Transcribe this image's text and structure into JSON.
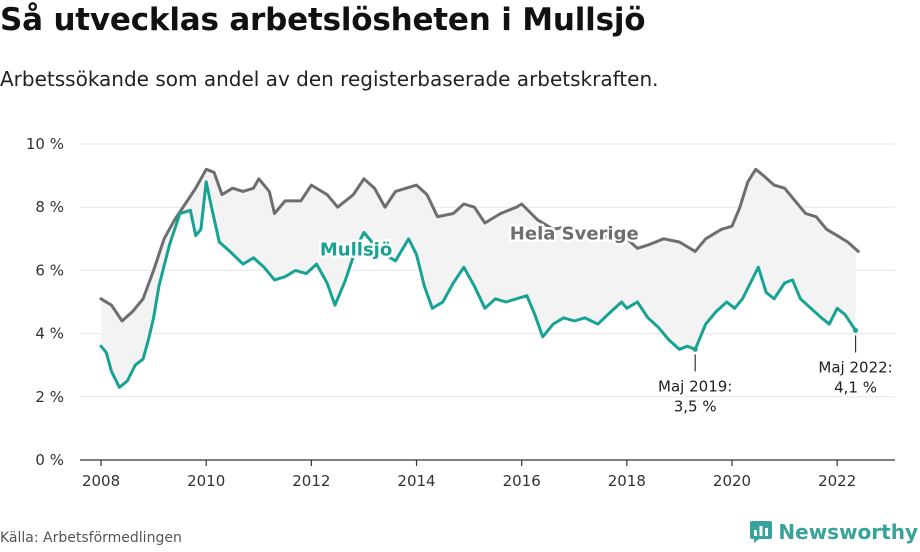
{
  "title": "Så utvecklas arbetslösheten i Mullsjö",
  "subtitle": "Arbetssökande som andel av den registerbaserade arbetskraften.",
  "source": "Källa: Arbetsförmedlingen",
  "brand": {
    "name": "Newsworthy",
    "icon": "newsworthy-logo-icon",
    "color": "#38a39a"
  },
  "chart_data": {
    "type": "line",
    "xlim": [
      2007.6,
      2023.1
    ],
    "ylim": [
      0,
      10
    ],
    "x_ticks": [
      2008,
      2010,
      2012,
      2014,
      2016,
      2018,
      2020,
      2022
    ],
    "y_ticks": [
      {
        "value": 0,
        "label": "0 %"
      },
      {
        "value": 2,
        "label": "2 %"
      },
      {
        "value": 4,
        "label": "4 %"
      },
      {
        "value": 6,
        "label": "6 %"
      },
      {
        "value": 8,
        "label": "8 %"
      },
      {
        "value": 10,
        "label": "10 %"
      }
    ],
    "grid": true,
    "series": [
      {
        "name": "Hela Sverige",
        "color": "#6e6e72",
        "points": [
          [
            2008.0,
            5.1
          ],
          [
            2008.2,
            4.9
          ],
          [
            2008.4,
            4.4
          ],
          [
            2008.6,
            4.7
          ],
          [
            2008.8,
            5.1
          ],
          [
            2009.0,
            6.0
          ],
          [
            2009.2,
            7.0
          ],
          [
            2009.4,
            7.6
          ],
          [
            2009.6,
            8.1
          ],
          [
            2009.8,
            8.6
          ],
          [
            2010.0,
            9.2
          ],
          [
            2010.15,
            9.1
          ],
          [
            2010.3,
            8.4
          ],
          [
            2010.5,
            8.6
          ],
          [
            2010.7,
            8.5
          ],
          [
            2010.9,
            8.6
          ],
          [
            2011.0,
            8.9
          ],
          [
            2011.2,
            8.5
          ],
          [
            2011.3,
            7.8
          ],
          [
            2011.5,
            8.2
          ],
          [
            2011.8,
            8.2
          ],
          [
            2012.0,
            8.7
          ],
          [
            2012.3,
            8.4
          ],
          [
            2012.5,
            8.0
          ],
          [
            2012.8,
            8.4
          ],
          [
            2013.0,
            8.9
          ],
          [
            2013.2,
            8.6
          ],
          [
            2013.4,
            8.0
          ],
          [
            2013.6,
            8.5
          ],
          [
            2014.0,
            8.7
          ],
          [
            2014.2,
            8.4
          ],
          [
            2014.4,
            7.7
          ],
          [
            2014.7,
            7.8
          ],
          [
            2014.9,
            8.1
          ],
          [
            2015.1,
            8.0
          ],
          [
            2015.3,
            7.5
          ],
          [
            2015.6,
            7.8
          ],
          [
            2015.9,
            8.0
          ],
          [
            2016.0,
            8.1
          ],
          [
            2016.3,
            7.6
          ],
          [
            2016.6,
            7.3
          ],
          [
            2016.9,
            7.4
          ],
          [
            2017.2,
            7.2
          ],
          [
            2017.5,
            7.0
          ],
          [
            2017.8,
            7.2
          ],
          [
            2018.0,
            7.0
          ],
          [
            2018.2,
            6.7
          ],
          [
            2018.4,
            6.8
          ],
          [
            2018.7,
            7.0
          ],
          [
            2019.0,
            6.9
          ],
          [
            2019.3,
            6.6
          ],
          [
            2019.5,
            7.0
          ],
          [
            2019.8,
            7.3
          ],
          [
            2020.0,
            7.4
          ],
          [
            2020.15,
            8.0
          ],
          [
            2020.3,
            8.8
          ],
          [
            2020.45,
            9.2
          ],
          [
            2020.6,
            9.0
          ],
          [
            2020.8,
            8.7
          ],
          [
            2021.0,
            8.6
          ],
          [
            2021.2,
            8.2
          ],
          [
            2021.4,
            7.8
          ],
          [
            2021.6,
            7.7
          ],
          [
            2021.8,
            7.3
          ],
          [
            2022.0,
            7.1
          ],
          [
            2022.2,
            6.9
          ],
          [
            2022.4,
            6.6
          ]
        ]
      },
      {
        "name": "Mullsjö",
        "color": "#17a394",
        "points": [
          [
            2008.0,
            3.6
          ],
          [
            2008.1,
            3.4
          ],
          [
            2008.2,
            2.8
          ],
          [
            2008.35,
            2.3
          ],
          [
            2008.5,
            2.5
          ],
          [
            2008.65,
            3.0
          ],
          [
            2008.8,
            3.2
          ],
          [
            2008.9,
            3.8
          ],
          [
            2009.0,
            4.5
          ],
          [
            2009.1,
            5.5
          ],
          [
            2009.3,
            6.8
          ],
          [
            2009.5,
            7.8
          ],
          [
            2009.7,
            7.9
          ],
          [
            2009.8,
            7.1
          ],
          [
            2009.9,
            7.3
          ],
          [
            2010.0,
            8.8
          ],
          [
            2010.1,
            8.0
          ],
          [
            2010.25,
            6.9
          ],
          [
            2010.45,
            6.6
          ],
          [
            2010.7,
            6.2
          ],
          [
            2010.9,
            6.4
          ],
          [
            2011.1,
            6.1
          ],
          [
            2011.3,
            5.7
          ],
          [
            2011.5,
            5.8
          ],
          [
            2011.7,
            6.0
          ],
          [
            2011.9,
            5.9
          ],
          [
            2012.1,
            6.2
          ],
          [
            2012.3,
            5.6
          ],
          [
            2012.45,
            4.9
          ],
          [
            2012.65,
            5.7
          ],
          [
            2012.85,
            6.7
          ],
          [
            2013.0,
            7.2
          ],
          [
            2013.2,
            6.8
          ],
          [
            2013.4,
            6.5
          ],
          [
            2013.6,
            6.3
          ],
          [
            2013.85,
            7.0
          ],
          [
            2014.0,
            6.5
          ],
          [
            2014.15,
            5.5
          ],
          [
            2014.3,
            4.8
          ],
          [
            2014.5,
            5.0
          ],
          [
            2014.7,
            5.6
          ],
          [
            2014.9,
            6.1
          ],
          [
            2015.1,
            5.5
          ],
          [
            2015.3,
            4.8
          ],
          [
            2015.5,
            5.1
          ],
          [
            2015.7,
            5.0
          ],
          [
            2015.9,
            5.1
          ],
          [
            2016.1,
            5.2
          ],
          [
            2016.25,
            4.6
          ],
          [
            2016.4,
            3.9
          ],
          [
            2016.6,
            4.3
          ],
          [
            2016.8,
            4.5
          ],
          [
            2017.0,
            4.4
          ],
          [
            2017.2,
            4.5
          ],
          [
            2017.45,
            4.3
          ],
          [
            2017.7,
            4.7
          ],
          [
            2017.9,
            5.0
          ],
          [
            2018.0,
            4.8
          ],
          [
            2018.2,
            5.0
          ],
          [
            2018.4,
            4.5
          ],
          [
            2018.6,
            4.2
          ],
          [
            2018.8,
            3.8
          ],
          [
            2019.0,
            3.5
          ],
          [
            2019.15,
            3.6
          ],
          [
            2019.3,
            3.5
          ],
          [
            2019.5,
            4.3
          ],
          [
            2019.7,
            4.7
          ],
          [
            2019.9,
            5.0
          ],
          [
            2020.05,
            4.8
          ],
          [
            2020.2,
            5.1
          ],
          [
            2020.35,
            5.6
          ],
          [
            2020.5,
            6.1
          ],
          [
            2020.65,
            5.3
          ],
          [
            2020.8,
            5.1
          ],
          [
            2021.0,
            5.6
          ],
          [
            2021.15,
            5.7
          ],
          [
            2021.3,
            5.1
          ],
          [
            2021.5,
            4.8
          ],
          [
            2021.7,
            4.5
          ],
          [
            2021.85,
            4.3
          ],
          [
            2022.0,
            4.8
          ],
          [
            2022.15,
            4.6
          ],
          [
            2022.35,
            4.1
          ]
        ]
      }
    ],
    "series_labels": [
      {
        "series": "Hela Sverige",
        "text": "Hela Sverige",
        "x": 2017.0,
        "y": 7.2
      },
      {
        "series": "Mullsjö",
        "text": "Mullsjö",
        "x": 2012.85,
        "y": 6.7
      }
    ],
    "annotations": [
      {
        "x": 2019.3,
        "y": 3.5,
        "lines": [
          "Maj 2019:",
          "3,5 %"
        ]
      },
      {
        "x": 2022.35,
        "y": 4.1,
        "lines": [
          "Maj 2022:",
          "4,1 %"
        ]
      }
    ]
  }
}
